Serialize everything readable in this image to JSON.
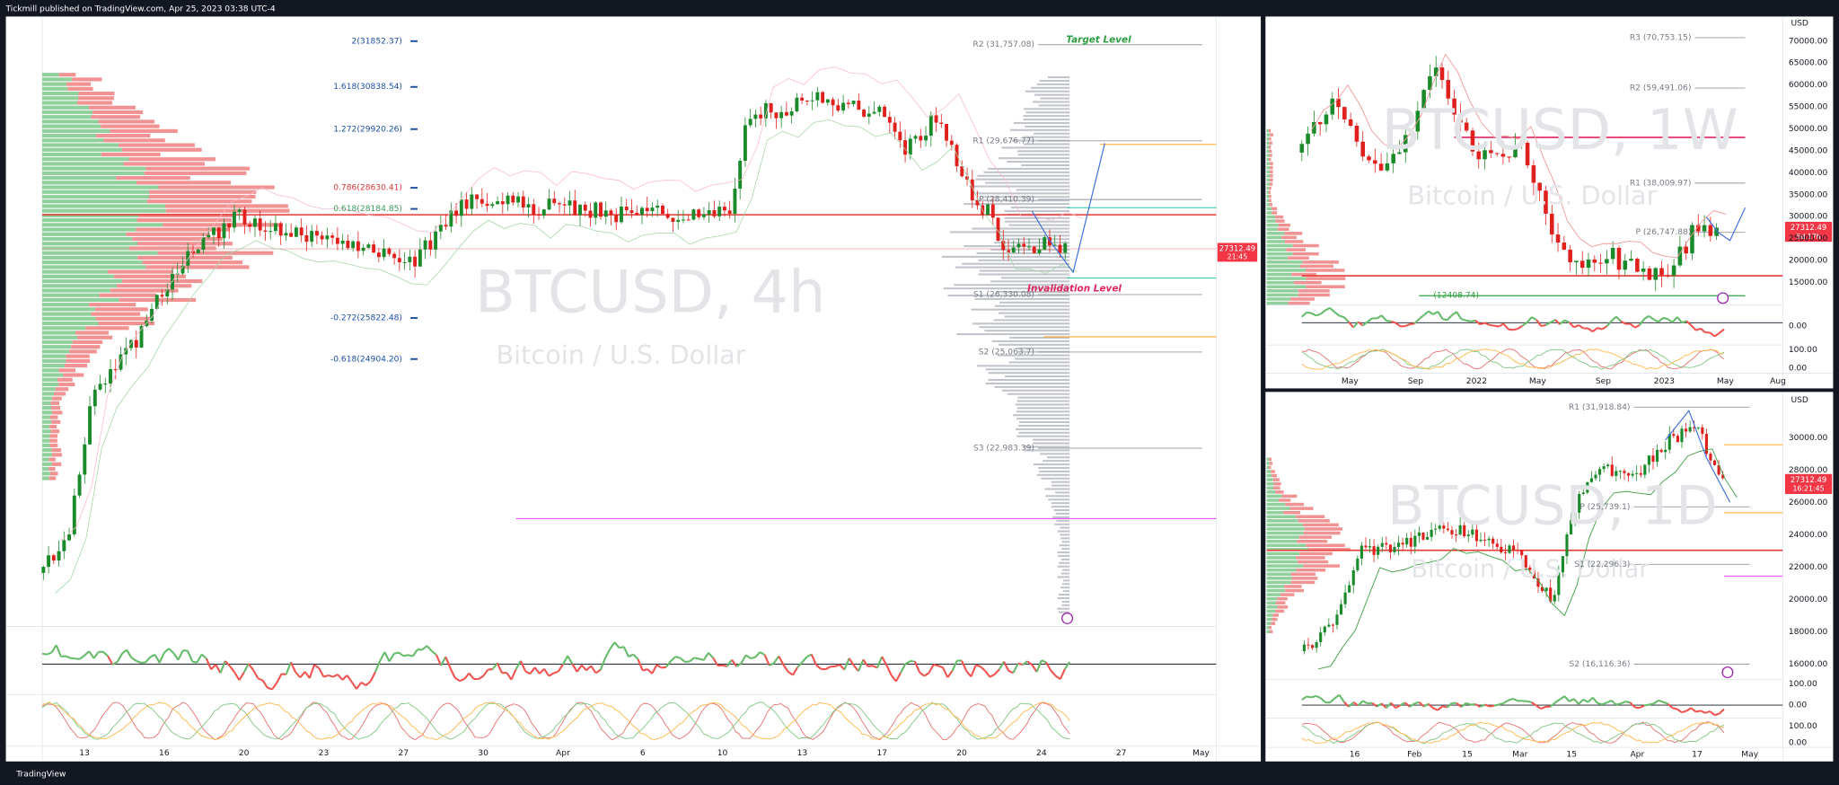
{
  "header": {
    "publisher": "Tickmill published on TradingView.com, Apr 25, 2023 03:38 UTC-4"
  },
  "footer": {
    "brand": "TradingView"
  },
  "main_panel": {
    "symbol": "BTCUSD, 4h",
    "description": "Bitcoin / U.S. Dollar",
    "fib_levels": [
      "2(31852.37)",
      "1.618(30838.54)",
      "1.272(29920.26)",
      "0.786(28630.41)",
      "0.618(28184.85)",
      "-0.272(25822.48)",
      "-0.618(24904.20)"
    ],
    "pivots": [
      "R2 (31,757.08)",
      "R1 (29,676.77)",
      "P (28,410.39)",
      "S1 (26,330.08)",
      "S2 (25,063.7)",
      "S3 (22,983.39)"
    ],
    "target_label": "Target Level",
    "invalidation_label": "Invalidation Level",
    "price_tag": "27312.49",
    "countdown": "21:45",
    "x_labels": [
      "13",
      "16",
      "20",
      "23",
      "27",
      "30",
      "Apr",
      "6",
      "10",
      "13",
      "17",
      "20",
      "24",
      "27",
      "May"
    ]
  },
  "weekly_panel": {
    "symbol": "BTCUSD, 1W",
    "description": "Bitcoin / U.S. Dollar",
    "currency": "USD",
    "y_labels": [
      "70000.00",
      "65000.00",
      "60000.00",
      "55000.00",
      "50000.00",
      "45000.00",
      "40000.00",
      "35000.00",
      "30000.00",
      "25000.00",
      "20000.00",
      "15000.00"
    ],
    "pivots": [
      "R3 (70,753.15)",
      "R2 (59,491.06)",
      "R1 (38,009.97)",
      "P (26,747.88)",
      "(12408.74)"
    ],
    "price_tag": "27312.49",
    "countdown": "5d 17h",
    "osc_labels": [
      "0.00",
      "100.00",
      "0.00"
    ],
    "x_labels": [
      "May",
      "Sep",
      "2022",
      "May",
      "Sep",
      "2023",
      "May",
      "Aug"
    ]
  },
  "daily_panel": {
    "symbol": "BTCUSD, 1D",
    "description": "Bitcoin / U.S. Dollar",
    "currency": "USD",
    "y_labels": [
      "30000.00",
      "28000.00",
      "26000.00",
      "24000.00",
      "22000.00",
      "20000.00",
      "18000.00",
      "16000.00"
    ],
    "pivots": [
      "R1 (31,918.84)",
      "P (25,739.1)",
      "S1 (22,296.3)",
      "S2 (16,116.36)"
    ],
    "price_tag": "27312.49",
    "countdown": "16:21:45",
    "osc_labels": [
      "100.00",
      "0.00",
      "100.00",
      "0.00"
    ],
    "x_labels": [
      "16",
      "Feb",
      "15",
      "Mar",
      "15",
      "Apr",
      "17",
      "May"
    ]
  }
}
